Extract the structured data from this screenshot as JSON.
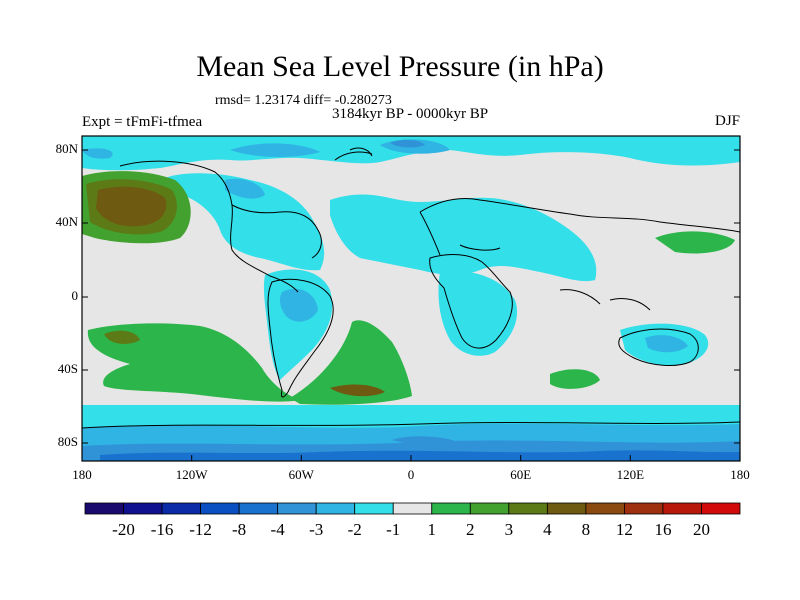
{
  "title": "Mean Sea Level Pressure (in hPa)",
  "stats": "rmsd= 1.23174 diff= -0.280273",
  "left_label": "Expt = tFmFi-tfmea",
  "center_label": "3184kyr BP - 0000kyr BP",
  "right_label": "DJF",
  "y_axis": [
    "80N",
    "40N",
    "0",
    "40S",
    "80S"
  ],
  "x_axis": [
    "180",
    "120W",
    "60W",
    "0",
    "60E",
    "120E",
    "180"
  ],
  "colorbar": {
    "labels": [
      "-20",
      "-16",
      "-12",
      "-8",
      "-4",
      "-3",
      "-2",
      "-1",
      "1",
      "2",
      "3",
      "4",
      "8",
      "12",
      "16",
      "20"
    ],
    "colors": [
      "#1a0a6e",
      "#10118f",
      "#0a2aa8",
      "#0a50c2",
      "#1a72cf",
      "#3093d8",
      "#30b4e4",
      "#33dfe9",
      "#e6e6e6",
      "#2cb54a",
      "#43a12f",
      "#5c7a16",
      "#6e5a10",
      "#8a4a10",
      "#9e3010",
      "#b8180a",
      "#d20a0a"
    ]
  }
}
